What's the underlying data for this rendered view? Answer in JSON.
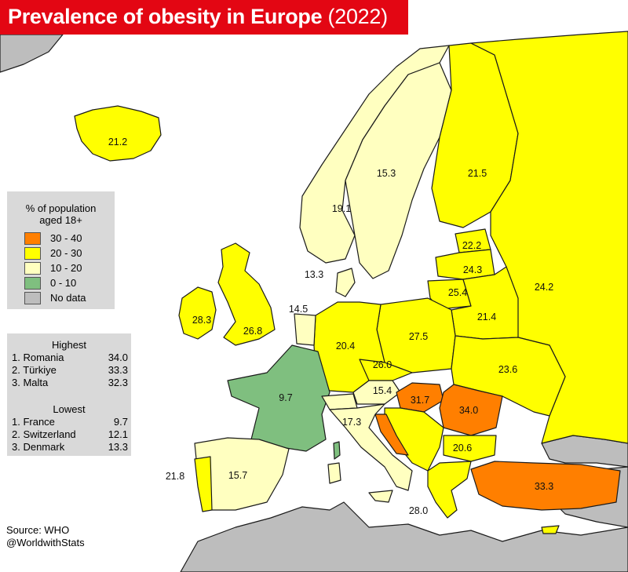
{
  "title": {
    "main": "Prevalence of obesity in Europe",
    "year": "(2022)"
  },
  "colors": {
    "title_bg": "#e30613",
    "sea": "#ffffff",
    "no_data": "#bdbdbd",
    "border": "#1a1a1a",
    "class_30_40": "#ff7f00",
    "class_20_30": "#ffff00",
    "class_10_20": "#ffffc0",
    "class_0_10": "#7fbf7f"
  },
  "legend": {
    "title_line1": "% of population",
    "title_line2": "aged 18+",
    "items": [
      {
        "label": "30 - 40",
        "color": "#ff7f00"
      },
      {
        "label": "20 - 30",
        "color": "#ffff00"
      },
      {
        "label": "10 - 20",
        "color": "#ffffc0"
      },
      {
        "label": "0 - 10",
        "color": "#7fbf7f"
      },
      {
        "label": "No data",
        "color": "#bdbdbd"
      }
    ]
  },
  "highest": {
    "heading": "Highest",
    "rows": [
      {
        "name": "1. Romania",
        "value": "34.0"
      },
      {
        "name": "2. Türkiye",
        "value": "33.3"
      },
      {
        "name": "3. Malta",
        "value": "32.3"
      }
    ]
  },
  "lowest": {
    "heading": "Lowest",
    "rows": [
      {
        "name": "1. France",
        "value": "9.7"
      },
      {
        "name": "2. Switzerland",
        "value": "12.1"
      },
      {
        "name": "3. Denmark",
        "value": "13.3"
      }
    ]
  },
  "source": {
    "line1": "Source: WHO",
    "line2": "@WorldwithStats"
  },
  "map_values": {
    "iceland": "21.2",
    "ireland": "28.3",
    "uk": "26.8",
    "norway": "19.1",
    "sweden": "15.3",
    "finland": "21.5",
    "russia": "24.2",
    "estonia": "22.2",
    "latvia": "24.3",
    "lithuania": "25.4",
    "belarus": "21.4",
    "poland": "27.5",
    "ukraine": "23.6",
    "denmark": "13.3",
    "netherlands": "14.5",
    "germany": "20.4",
    "czechia": "26.0",
    "austria": "15.4",
    "hungary": "31.7",
    "romania": "34.0",
    "france": "9.7",
    "italy": "17.3",
    "bulgaria": "20.6",
    "turkey": "33.3",
    "greece": "28.0",
    "spain": "15.7",
    "portugal": "21.8"
  }
}
